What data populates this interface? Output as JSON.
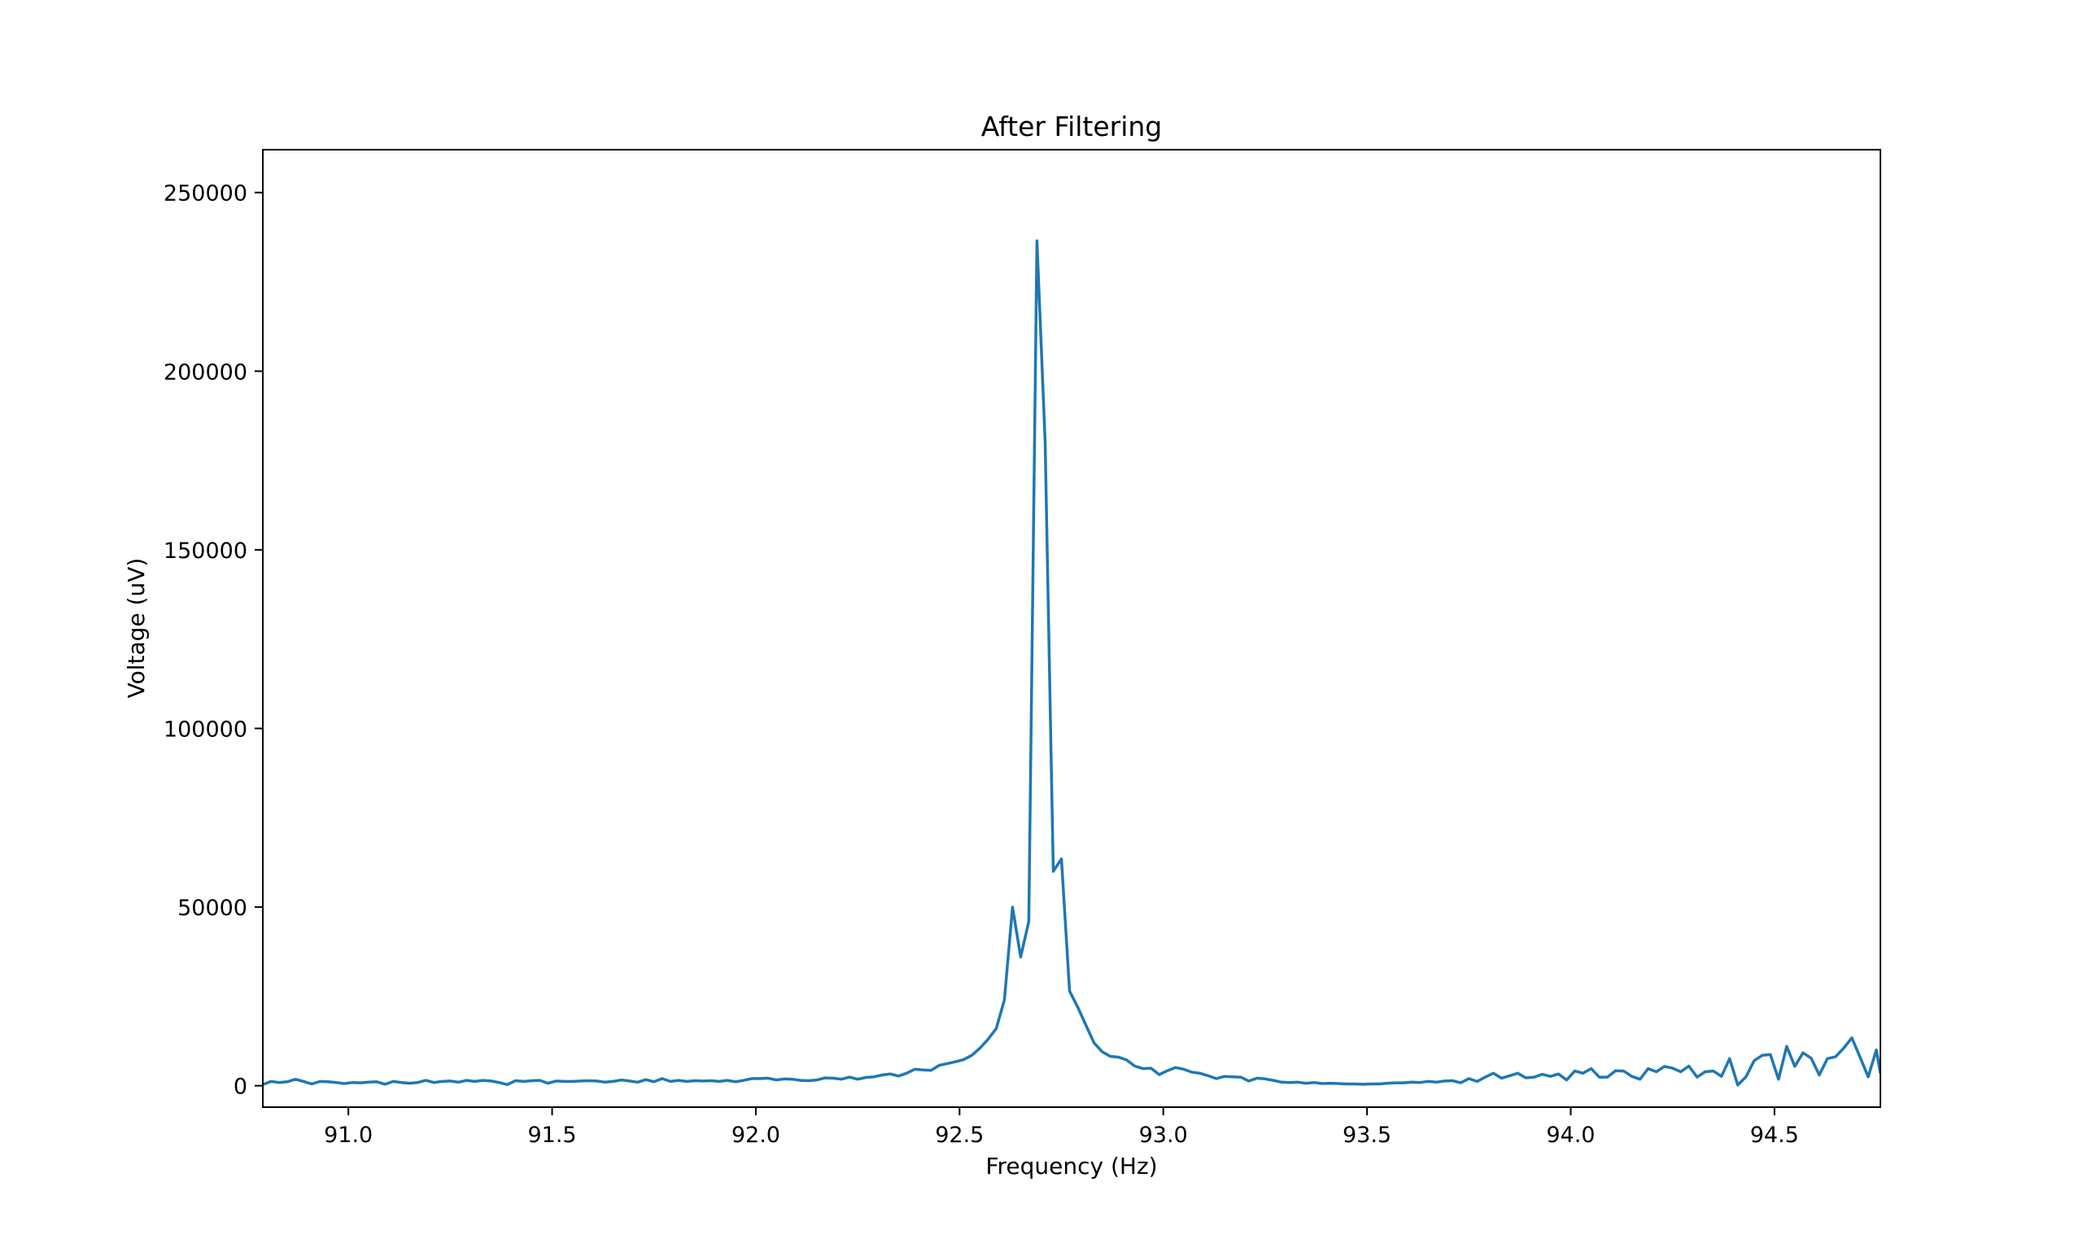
{
  "chart_data": {
    "type": "line",
    "title": "After Filtering",
    "xlabel": "Frequency (Hz)",
    "ylabel": "Voltage (uV)",
    "xlim": [
      90.79,
      94.76
    ],
    "ylim": [
      -6000,
      262000
    ],
    "xticks": [
      91.0,
      91.5,
      92.0,
      92.5,
      93.0,
      93.5,
      94.0,
      94.5
    ],
    "xtick_labels": [
      "91.0",
      "91.5",
      "92.0",
      "92.5",
      "93.0",
      "93.5",
      "94.0",
      "94.5"
    ],
    "yticks": [
      0,
      50000,
      100000,
      150000,
      200000,
      250000
    ],
    "ytick_labels": [
      "0",
      "50000",
      "100000",
      "150000",
      "200000",
      "250000"
    ],
    "grid": false,
    "series": [
      {
        "color": "#1f77b4",
        "x": [
          90.79,
          90.81,
          90.83,
          90.85,
          90.87,
          90.89,
          90.91,
          90.93,
          90.95,
          90.97,
          90.99,
          91.01,
          91.03,
          91.05,
          91.07,
          91.09,
          91.11,
          91.13,
          91.15,
          91.17,
          91.19,
          91.21,
          91.23,
          91.25,
          91.27,
          91.29,
          91.31,
          91.33,
          91.35,
          91.37,
          91.39,
          91.41,
          91.43,
          91.45,
          91.47,
          91.49,
          91.51,
          91.53,
          91.55,
          91.57,
          91.59,
          91.61,
          91.63,
          91.65,
          91.67,
          91.69,
          91.71,
          91.73,
          91.75,
          91.77,
          91.79,
          91.81,
          91.83,
          91.85,
          91.87,
          91.89,
          91.91,
          91.93,
          91.95,
          91.97,
          91.99,
          92.01,
          92.03,
          92.05,
          92.07,
          92.09,
          92.11,
          92.13,
          92.15,
          92.17,
          92.19,
          92.21,
          92.23,
          92.25,
          92.27,
          92.29,
          92.31,
          92.33,
          92.35,
          92.37,
          92.39,
          92.41,
          92.43,
          92.45,
          92.47,
          92.49,
          92.51,
          92.53,
          92.55,
          92.57,
          92.59,
          92.61,
          92.63,
          92.65,
          92.67,
          92.69,
          92.71,
          92.73,
          92.75,
          92.77,
          92.79,
          92.81,
          92.83,
          92.85,
          92.87,
          92.89,
          92.91,
          92.93,
          92.95,
          92.97,
          92.99,
          93.01,
          93.03,
          93.05,
          93.07,
          93.09,
          93.11,
          93.13,
          93.15,
          93.17,
          93.19,
          93.21,
          93.23,
          93.25,
          93.27,
          93.29,
          93.31,
          93.33,
          93.35,
          93.37,
          93.39,
          93.41,
          93.43,
          93.45,
          93.47,
          93.49,
          93.51,
          93.53,
          93.55,
          93.57,
          93.59,
          93.61,
          93.63,
          93.65,
          93.67,
          93.69,
          93.71,
          93.73,
          93.75,
          93.77,
          93.79,
          93.81,
          93.83,
          93.85,
          93.87,
          93.89,
          93.91,
          93.93,
          93.95,
          93.97,
          93.99,
          94.01,
          94.03,
          94.05,
          94.07,
          94.09,
          94.11,
          94.13,
          94.15,
          94.17,
          94.19,
          94.21,
          94.23,
          94.25,
          94.27,
          94.29,
          94.31,
          94.33,
          94.35,
          94.37,
          94.39,
          94.41,
          94.43,
          94.45,
          94.47,
          94.49,
          94.51,
          94.53,
          94.55,
          94.57,
          94.59,
          94.61,
          94.63,
          94.65,
          94.67,
          94.69,
          94.71,
          94.73,
          94.75,
          94.76
        ],
        "y": [
          300,
          1200,
          900,
          1100,
          1800,
          1200,
          500,
          1200,
          1100,
          900,
          600,
          900,
          800,
          1000,
          1100,
          400,
          1200,
          900,
          700,
          900,
          1500,
          900,
          1200,
          1300,
          1000,
          1500,
          1200,
          1500,
          1300,
          900,
          300,
          1400,
          1200,
          1400,
          1500,
          700,
          1300,
          1200,
          1200,
          1300,
          1400,
          1300,
          1000,
          1200,
          1600,
          1300,
          1000,
          1700,
          1100,
          2000,
          1200,
          1500,
          1200,
          1400,
          1300,
          1400,
          1200,
          1500,
          1100,
          1500,
          2000,
          2000,
          2100,
          1600,
          1900,
          1800,
          1500,
          1400,
          1600,
          2200,
          2100,
          1800,
          2400,
          1800,
          2300,
          2500,
          3000,
          3300,
          2700,
          3500,
          4600,
          4400,
          4300,
          5700,
          6200,
          6700,
          7300,
          8500,
          10500,
          13000,
          16000,
          24000,
          50000,
          36000,
          46000,
          236500,
          180000,
          60000,
          63500,
          26500,
          22000,
          17000,
          12000,
          9500,
          8200,
          8000,
          7200,
          5500,
          4800,
          4900,
          3100,
          4200,
          5100,
          4600,
          3800,
          3500,
          2800,
          2000,
          2600,
          2500,
          2400,
          1300,
          2100,
          1900,
          1500,
          1000,
          900,
          1000,
          700,
          900,
          600,
          700,
          600,
          500,
          500,
          400,
          500,
          500,
          700,
          800,
          800,
          1000,
          900,
          1200,
          1000,
          1300,
          1400,
          800,
          2000,
          1200,
          2400,
          3500,
          2100,
          2800,
          3500,
          2200,
          2400,
          3200,
          2600,
          3300,
          1600,
          4100,
          3500,
          4800,
          2400,
          2400,
          4200,
          4100,
          2600,
          1800,
          4800,
          3900,
          5400,
          4900,
          3900,
          5500,
          2400,
          3900,
          4100,
          2600,
          7600,
          200,
          2500,
          7000,
          8500,
          8700,
          1800,
          11000,
          5400,
          9200,
          7700,
          3000,
          7600,
          8100,
          10500,
          13400,
          8000,
          2500,
          10000,
          3500
        ]
      }
    ]
  }
}
